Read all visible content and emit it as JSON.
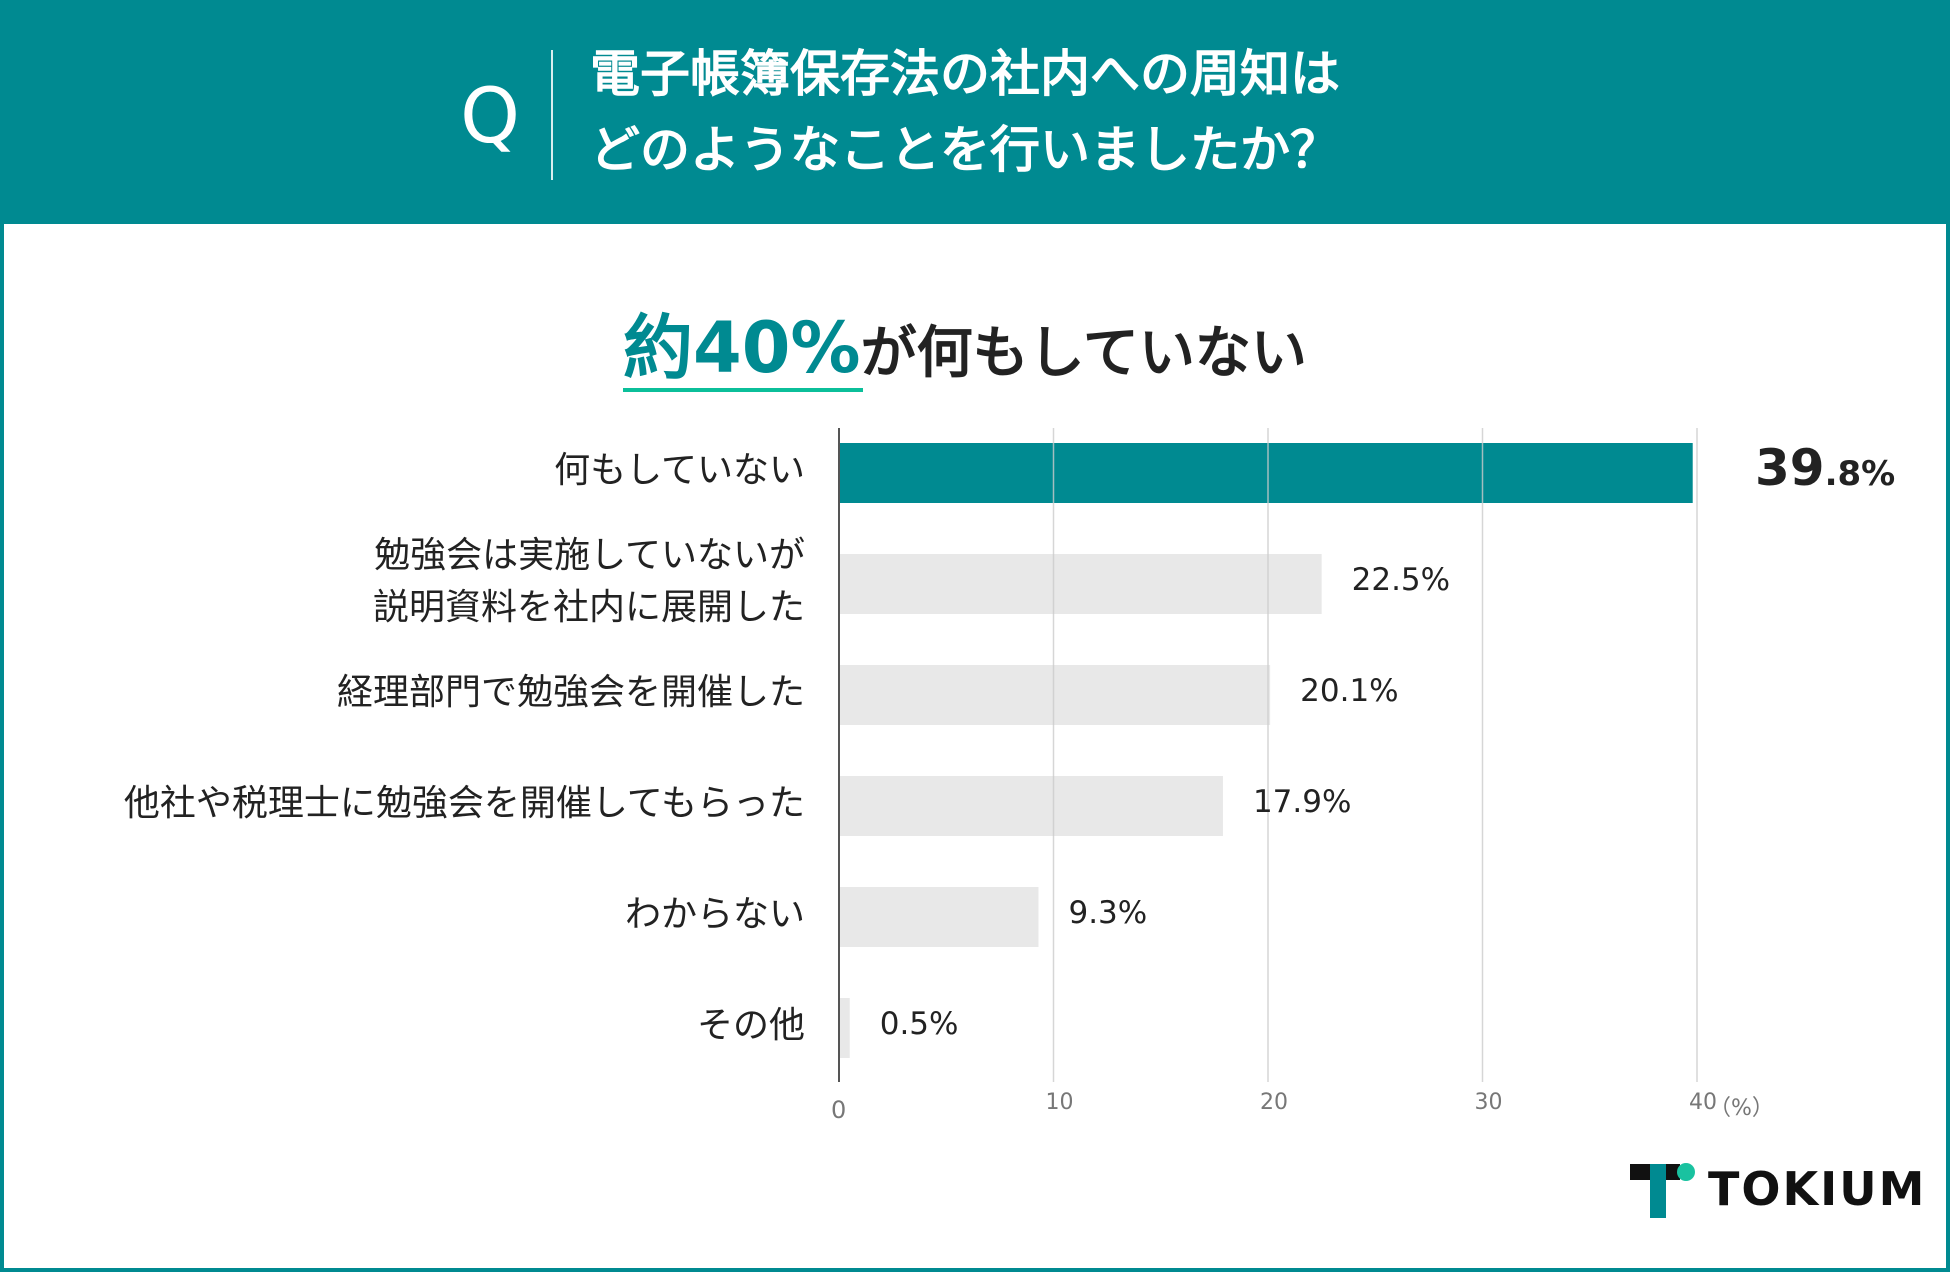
{
  "header": {
    "q_mark": "Q",
    "question_lines": [
      "電子帳簿保存法の社内への周知は",
      "どのようなことを行いましたか？"
    ]
  },
  "headline": {
    "accent": "約40%",
    "rest": "が何もしていない"
  },
  "chart_data": {
    "type": "bar",
    "orientation": "horizontal",
    "unit_label": "（%）",
    "xlim": [
      0,
      40
    ],
    "ticks": [
      0,
      10,
      20,
      30,
      40
    ],
    "grid": true,
    "categories": [
      [
        "何もしていない"
      ],
      [
        "勉強会は実施していないが",
        "説明資料を社内に展開した"
      ],
      [
        "経理部門で勉強会を開催した"
      ],
      [
        "他社や税理士に勉強会を開催してもらった"
      ],
      [
        "わからない"
      ],
      [
        "その他"
      ]
    ],
    "values": [
      39.8,
      22.5,
      20.1,
      17.9,
      9.3,
      0.5
    ],
    "value_labels": [
      "39.8%",
      "22.5%",
      "20.1%",
      "17.9%",
      "9.3%",
      "0.5%"
    ],
    "highlight_index": 0,
    "colors": {
      "highlight": "#008a91",
      "other": "#e8e8e8",
      "grid": "#cccccc",
      "axis": "#555555"
    }
  },
  "colors": {
    "brand": "#008a91",
    "underline": "#0bbf9a",
    "logo_dot": "#19c2a0"
  },
  "logo": {
    "text": "TOKIUM"
  }
}
